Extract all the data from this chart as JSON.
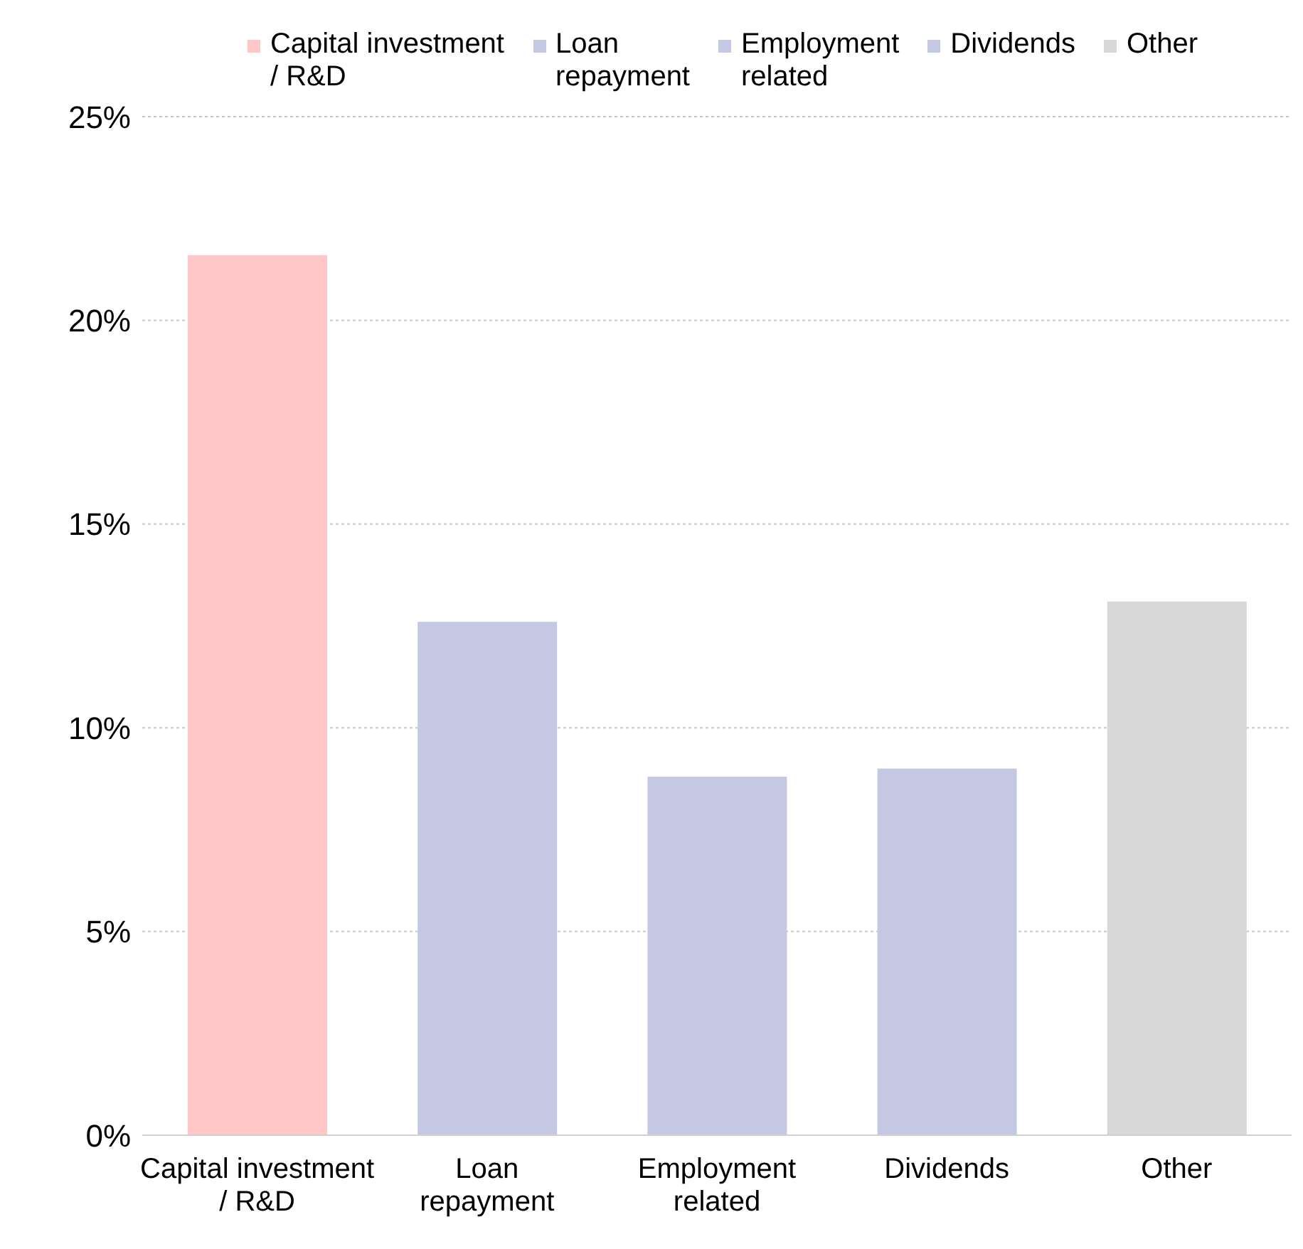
{
  "chart_data": {
    "type": "bar",
    "categories": [
      "Capital investment / R&D",
      "Loan repayment",
      "Employment related",
      "Dividends",
      "Other"
    ],
    "series": [
      {
        "name": "Capital investment / R&D",
        "color": "#ffc7c8",
        "values": [
          21.6,
          null,
          null,
          null,
          null
        ]
      },
      {
        "name": "Loan repayment",
        "color": "#c4c8e2",
        "values": [
          null,
          12.6,
          null,
          null,
          null
        ]
      },
      {
        "name": "Employment related",
        "color": "#c4c8e2",
        "values": [
          null,
          null,
          8.8,
          null,
          null
        ]
      },
      {
        "name": "Dividends",
        "color": "#c4c8e2",
        "values": [
          null,
          null,
          null,
          9.0,
          null
        ]
      },
      {
        "name": "Other",
        "color": "#d8d8d8",
        "values": [
          null,
          null,
          null,
          null,
          13.1
        ]
      }
    ],
    "stacked": true,
    "ylim": [
      0,
      25
    ],
    "yticks": [
      {
        "value": 0,
        "label": "0%"
      },
      {
        "value": 5,
        "label": "5%"
      },
      {
        "value": 10,
        "label": "10%"
      },
      {
        "value": 15,
        "label": "15%"
      },
      {
        "value": 20,
        "label": "20%"
      },
      {
        "value": 25,
        "label": "25%"
      }
    ],
    "grid": "y",
    "legend": "top"
  }
}
